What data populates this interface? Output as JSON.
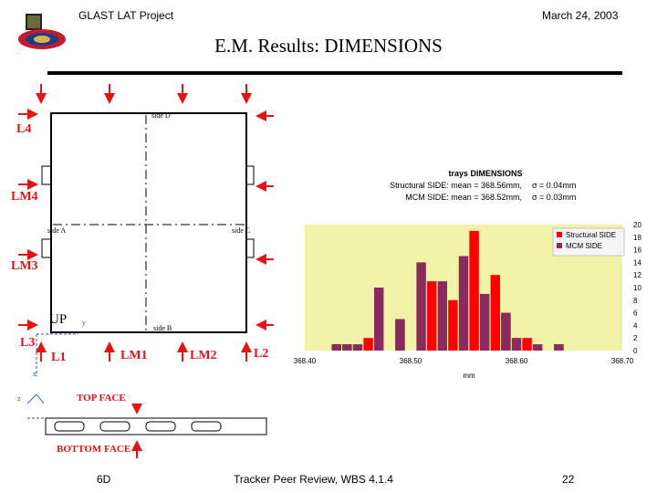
{
  "header": {
    "project": "GLAST LAT Project",
    "date": "March 24, 2003"
  },
  "title": "E.M. Results: DIMENSIONS",
  "drawing": {
    "side_labels": {
      "top": "side D",
      "left": "side A",
      "right": "side C",
      "bottom": "side B"
    },
    "up_label": "UP",
    "axis_y": "y",
    "axis_x": "x",
    "axis_z": "z",
    "left_labels": [
      "L4",
      "LM4",
      "LM3",
      "L3"
    ],
    "bottom_labels": [
      "L1",
      "LM1",
      "LM2",
      "L2"
    ],
    "top_face": "TOP FACE",
    "bottom_face": "BOTTOM FACE"
  },
  "colors": {
    "red": "#e41414",
    "structural": "#ff0000",
    "mcm": "#8b2a5c",
    "plot_bg": "#f2f2a8"
  },
  "chart_data": {
    "type": "bar",
    "title": "trays DIMENSIONS",
    "stats": [
      {
        "label": "Structural SIDE: mean = 368.56mm,",
        "sigma": "σ = 0.04mm"
      },
      {
        "label": "MCM SIDE: mean = 368.52mm,",
        "sigma": "σ = 0.03mm"
      }
    ],
    "xlabel": "mm",
    "xlim": [
      368.4,
      368.7
    ],
    "x_ticks": [
      "368.40",
      "368.50",
      "368.60",
      "368.70"
    ],
    "ylim": [
      0,
      20
    ],
    "y_ticks": [
      "0",
      "2",
      "4",
      "6",
      "8",
      "10",
      "12",
      "14",
      "16",
      "18",
      "20"
    ],
    "legend_position": "top-right",
    "bin_width": 0.01,
    "series": [
      {
        "name": "Structural SIDE",
        "color": "#ff0000",
        "points": [
          {
            "x": 368.43,
            "y": 1
          },
          {
            "x": 368.44,
            "y": 1
          },
          {
            "x": 368.46,
            "y": 2
          },
          {
            "x": 368.49,
            "y": 5
          },
          {
            "x": 368.52,
            "y": 11
          },
          {
            "x": 368.54,
            "y": 8
          },
          {
            "x": 368.56,
            "y": 19
          },
          {
            "x": 368.58,
            "y": 12
          },
          {
            "x": 368.59,
            "y": 6
          },
          {
            "x": 368.61,
            "y": 2
          },
          {
            "x": 368.64,
            "y": 1
          }
        ]
      },
      {
        "name": "MCM SIDE",
        "color": "#8b2a5c",
        "points": [
          {
            "x": 368.43,
            "y": 1
          },
          {
            "x": 368.44,
            "y": 1
          },
          {
            "x": 368.45,
            "y": 1
          },
          {
            "x": 368.47,
            "y": 10
          },
          {
            "x": 368.49,
            "y": 5
          },
          {
            "x": 368.51,
            "y": 14
          },
          {
            "x": 368.53,
            "y": 11
          },
          {
            "x": 368.55,
            "y": 15
          },
          {
            "x": 368.57,
            "y": 9
          },
          {
            "x": 368.59,
            "y": 6
          },
          {
            "x": 368.6,
            "y": 2
          },
          {
            "x": 368.62,
            "y": 1
          },
          {
            "x": 368.64,
            "y": 1
          }
        ]
      }
    ]
  },
  "footer": {
    "slide_id": "6D",
    "center": "Tracker Peer Review, WBS 4.1.4",
    "page": "22"
  }
}
